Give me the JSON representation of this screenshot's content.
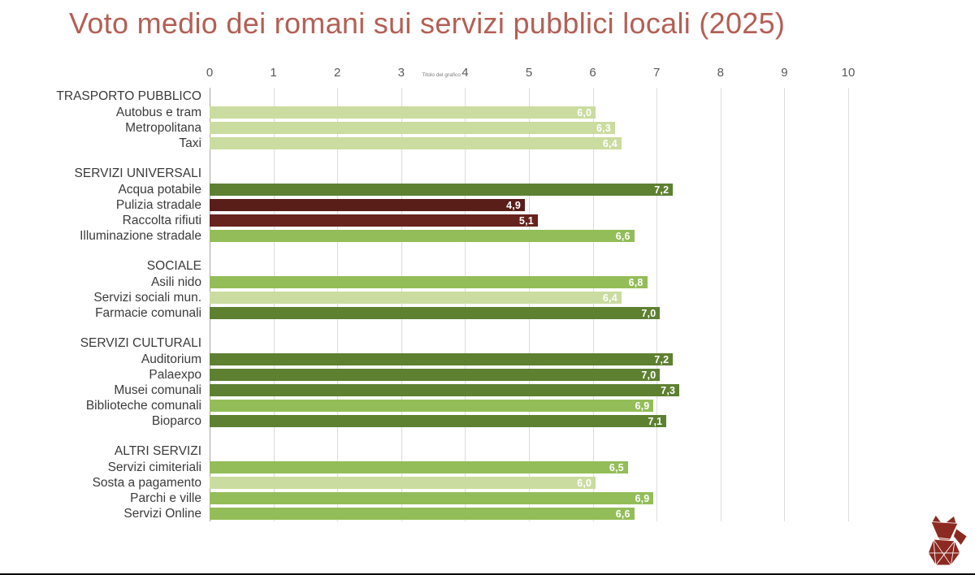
{
  "axis": {
    "placeholder": "Titolo del grafico"
  },
  "colors": {
    "pale": "#cadc9f",
    "medium": "#93bd58",
    "dark": "#5d8031",
    "maroon_dark": "#5a1e19",
    "maroon": "#67231d",
    "title": "#b45f55",
    "gridline": "#dcdcdc",
    "logo": "#8c2a21"
  },
  "chart_data": {
    "type": "bar",
    "orientation": "horizontal",
    "title": "Voto medio dei romani sui servizi pubblici locali (2025)",
    "xlim": [
      0,
      10
    ],
    "ticks": [
      0,
      1,
      2,
      3,
      4,
      5,
      6,
      7,
      8,
      9,
      10
    ],
    "grid": "vertical",
    "legend": "none",
    "value_labels": "inside-end",
    "groups": [
      {
        "label": "TRASPORTO PUBBLICO",
        "items": [
          {
            "label": "Autobus e tram",
            "value": 6.0,
            "display": "6,0",
            "color": "pale"
          },
          {
            "label": "Metropolitana",
            "value": 6.3,
            "display": "6,3",
            "color": "pale"
          },
          {
            "label": "Taxi",
            "value": 6.4,
            "display": "6,4",
            "color": "pale"
          }
        ]
      },
      {
        "label": "SERVIZI UNIVERSALI",
        "items": [
          {
            "label": "Acqua potabile",
            "value": 7.2,
            "display": "7,2",
            "color": "dark"
          },
          {
            "label": "Pulizia stradale",
            "value": 4.9,
            "display": "4,9",
            "color": "maroon_dark"
          },
          {
            "label": "Raccolta rifiuti",
            "value": 5.1,
            "display": "5,1",
            "color": "maroon"
          },
          {
            "label": "Illuminazione stradale",
            "value": 6.6,
            "display": "6,6",
            "color": "medium"
          }
        ]
      },
      {
        "label": "SOCIALE",
        "items": [
          {
            "label": "Asili nido",
            "value": 6.8,
            "display": "6,8",
            "color": "medium"
          },
          {
            "label": "Servizi sociali mun.",
            "value": 6.4,
            "display": "6,4",
            "color": "pale"
          },
          {
            "label": "Farmacie comunali",
            "value": 7.0,
            "display": "7,0",
            "color": "dark"
          }
        ]
      },
      {
        "label": "SERVIZI CULTURALI",
        "items": [
          {
            "label": "Auditorium",
            "value": 7.2,
            "display": "7,2",
            "color": "dark"
          },
          {
            "label": "Palaexpo",
            "value": 7.0,
            "display": "7,0",
            "color": "dark"
          },
          {
            "label": "Musei comunali",
            "value": 7.3,
            "display": "7,3",
            "color": "dark"
          },
          {
            "label": "Biblioteche comunali",
            "value": 6.9,
            "display": "6,9",
            "color": "medium"
          },
          {
            "label": "Bioparco",
            "value": 7.1,
            "display": "7,1",
            "color": "dark"
          }
        ]
      },
      {
        "label": "ALTRI SERVIZI",
        "items": [
          {
            "label": "Servizi cimiteriali",
            "value": 6.5,
            "display": "6,5",
            "color": "medium"
          },
          {
            "label": "Sosta a pagamento",
            "value": 6.0,
            "display": "6,0",
            "color": "pale"
          },
          {
            "label": "Parchi e ville",
            "value": 6.9,
            "display": "6,9",
            "color": "medium"
          },
          {
            "label": "Servizi Online",
            "value": 6.6,
            "display": "6,6",
            "color": "medium"
          }
        ]
      }
    ]
  }
}
